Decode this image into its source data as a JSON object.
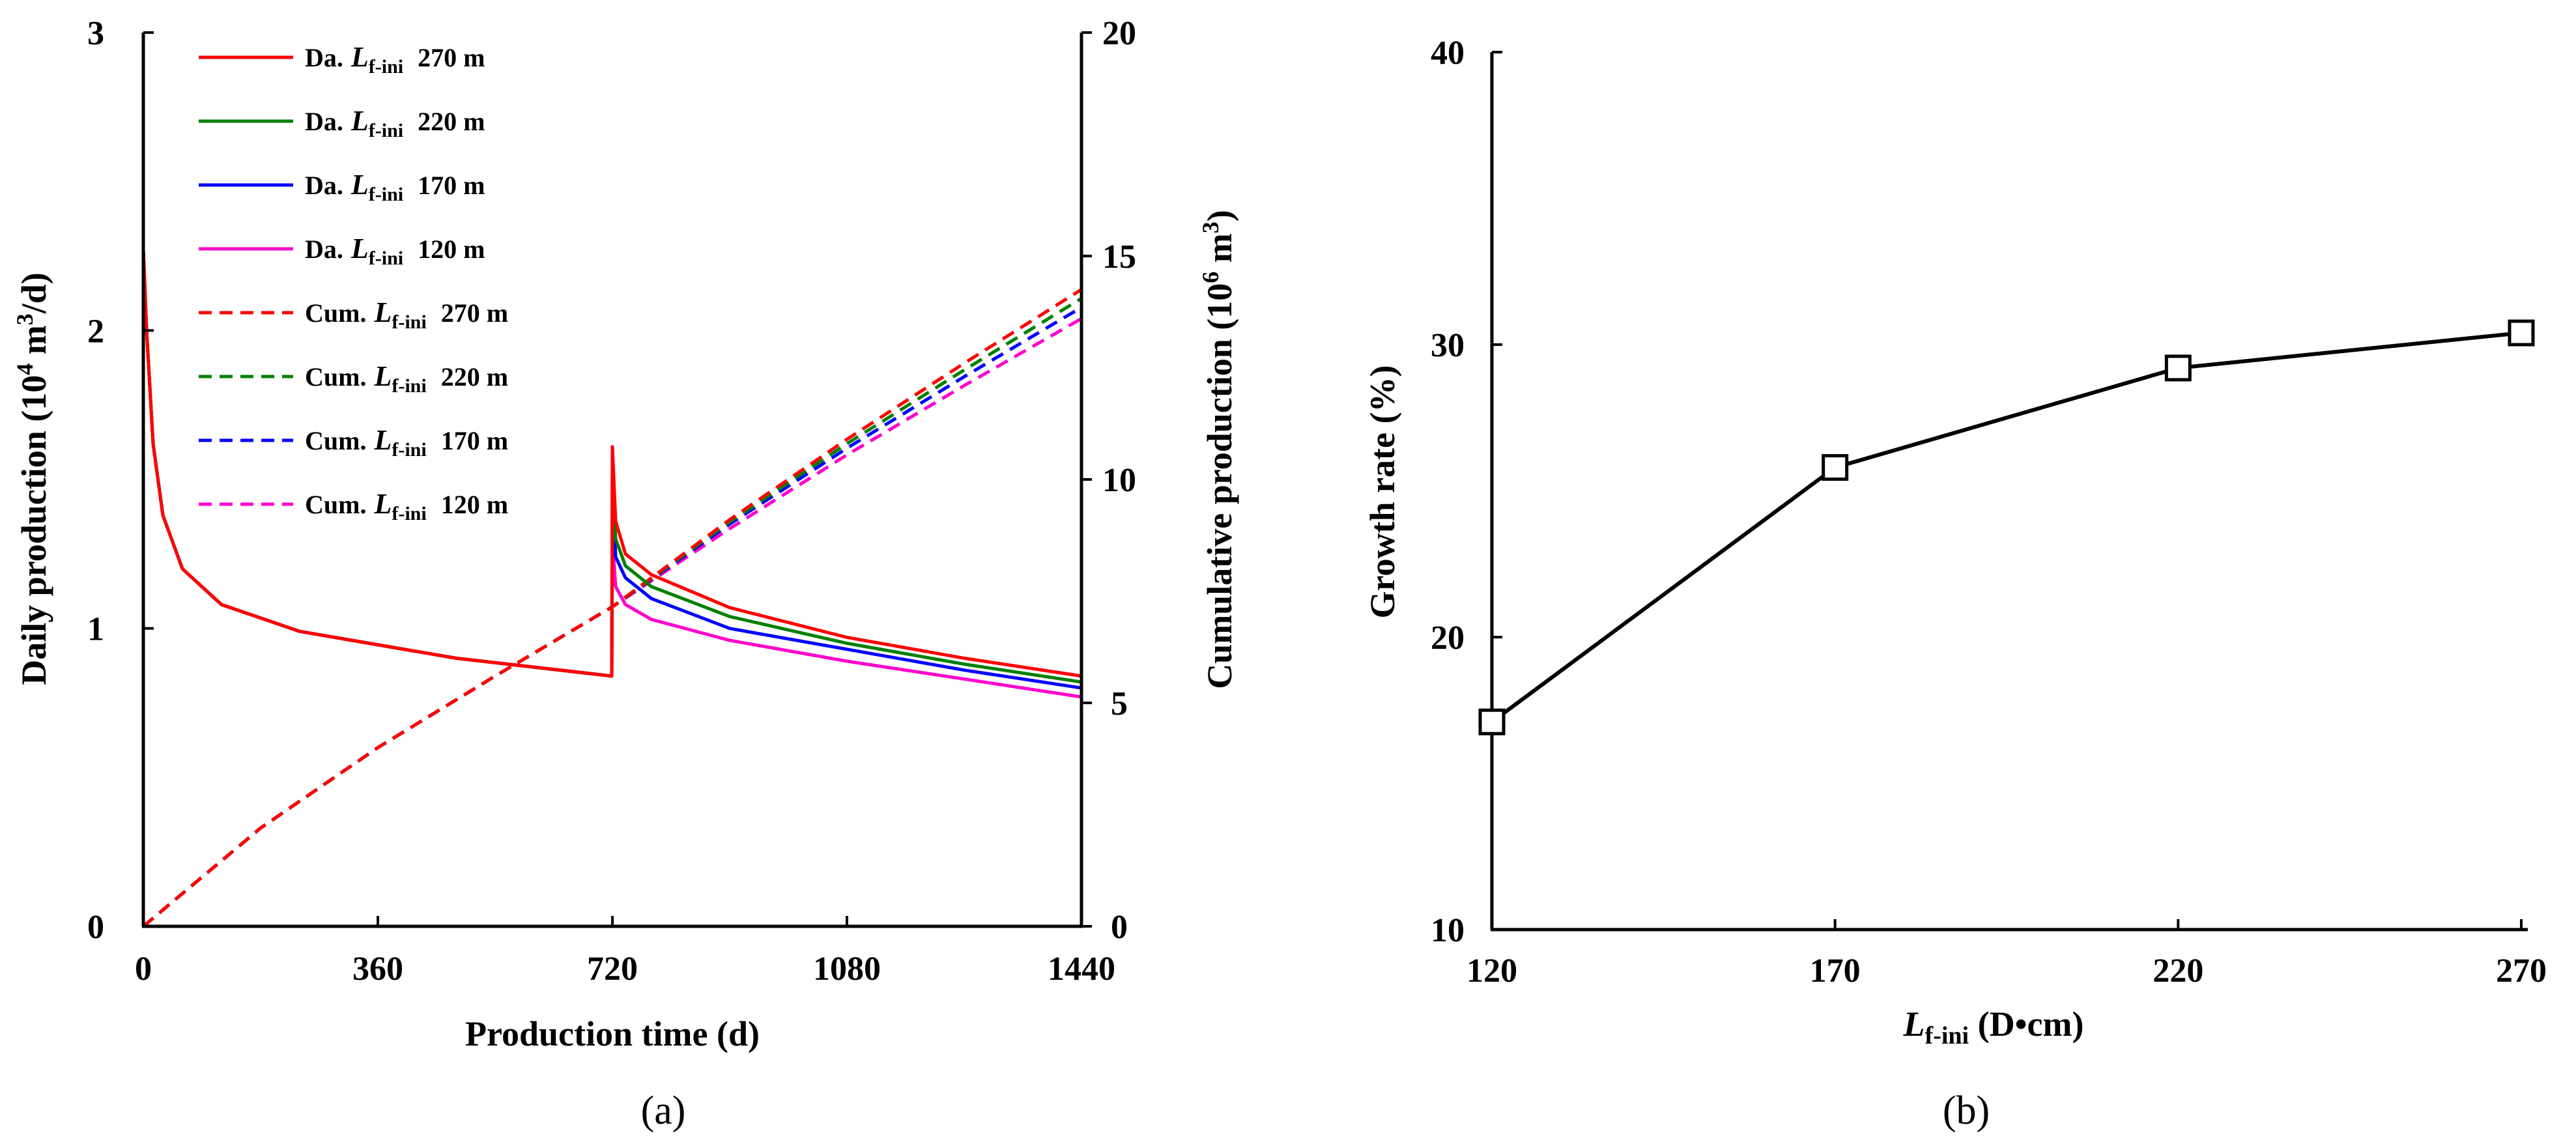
{
  "chart_data": [
    {
      "type": "line",
      "panel_label": "(a)",
      "xlabel": "Production time (d)",
      "ylabel_left": {
        "pre": "Daily  production  (10",
        "sup1": "4",
        "mid": " m",
        "sup2": "3",
        "post": "/d)"
      },
      "ylabel_right": {
        "pre": "Cumulative  production  (10",
        "sup1": "6",
        "mid": " m",
        "sup2": "3",
        "post": ")"
      },
      "x": {
        "min": 0,
        "max": 1440,
        "ticks": [
          0,
          360,
          720,
          1080,
          1440
        ],
        "tick_labels": [
          "0",
          "360",
          "720",
          "1080",
          "1440"
        ]
      },
      "y_left": {
        "min": 0,
        "max": 3,
        "ticks": [
          0,
          1,
          2,
          3
        ],
        "tick_labels": [
          "0",
          "1",
          "2",
          "3"
        ]
      },
      "y_right": {
        "min": 0,
        "max": 20,
        "ticks": [
          0,
          5,
          10,
          15,
          20
        ],
        "tick_labels": [
          "0",
          "5",
          "10",
          "15",
          "20"
        ]
      },
      "legend_position": "top-left",
      "series": [
        {
          "name": "Da. Lf-ini 270 m",
          "lead": "Da.",
          "sym": "L",
          "sub": "f-ini",
          "value": "270 m",
          "axis": "left",
          "style": "solid",
          "color": "#ff0000",
          "points": [
            [
              0,
              2.27
            ],
            [
              5,
              2.0
            ],
            [
              15,
              1.62
            ],
            [
              30,
              1.38
            ],
            [
              60,
              1.2
            ],
            [
              120,
              1.08
            ],
            [
              240,
              0.99
            ],
            [
              480,
              0.9
            ],
            [
              719,
              0.84
            ],
            [
              720,
              1.61
            ],
            [
              725,
              1.36
            ],
            [
              740,
              1.25
            ],
            [
              780,
              1.18
            ],
            [
              900,
              1.07
            ],
            [
              1080,
              0.97
            ],
            [
              1260,
              0.9
            ],
            [
              1440,
              0.84
            ]
          ]
        },
        {
          "name": "Da. Lf-ini 220 m",
          "lead": "Da.",
          "sym": "L",
          "sub": "f-ini",
          "value": "220 m",
          "axis": "left",
          "style": "solid",
          "color": "#008000",
          "points": [
            [
              0,
              2.27
            ],
            [
              5,
              2.0
            ],
            [
              15,
              1.62
            ],
            [
              30,
              1.38
            ],
            [
              60,
              1.2
            ],
            [
              120,
              1.08
            ],
            [
              240,
              0.99
            ],
            [
              480,
              0.9
            ],
            [
              719,
              0.84
            ],
            [
              720,
              1.53
            ],
            [
              725,
              1.3
            ],
            [
              740,
              1.21
            ],
            [
              780,
              1.14
            ],
            [
              900,
              1.04
            ],
            [
              1080,
              0.95
            ],
            [
              1260,
              0.88
            ],
            [
              1440,
              0.82
            ]
          ]
        },
        {
          "name": "Da. Lf-ini 170 m",
          "lead": "Da.",
          "sym": "L",
          "sub": "f-ini",
          "value": "170 m",
          "axis": "left",
          "style": "solid",
          "color": "#0000ff",
          "points": [
            [
              0,
              2.27
            ],
            [
              5,
              2.0
            ],
            [
              15,
              1.62
            ],
            [
              30,
              1.38
            ],
            [
              60,
              1.2
            ],
            [
              120,
              1.08
            ],
            [
              240,
              0.99
            ],
            [
              480,
              0.9
            ],
            [
              719,
              0.84
            ],
            [
              720,
              1.46
            ],
            [
              725,
              1.24
            ],
            [
              740,
              1.17
            ],
            [
              780,
              1.1
            ],
            [
              900,
              1.0
            ],
            [
              1080,
              0.93
            ],
            [
              1260,
              0.86
            ],
            [
              1440,
              0.8
            ]
          ]
        },
        {
          "name": "Da. Lf-ini 120 m",
          "lead": "Da.",
          "sym": "L",
          "sub": "f-ini",
          "value": "120 m",
          "axis": "left",
          "style": "solid",
          "color": "#ff00cc",
          "points": [
            [
              0,
              2.27
            ],
            [
              5,
              2.0
            ],
            [
              15,
              1.62
            ],
            [
              30,
              1.38
            ],
            [
              60,
              1.2
            ],
            [
              120,
              1.08
            ],
            [
              240,
              0.99
            ],
            [
              480,
              0.9
            ],
            [
              719,
              0.84
            ],
            [
              720,
              1.3
            ],
            [
              725,
              1.14
            ],
            [
              740,
              1.08
            ],
            [
              780,
              1.03
            ],
            [
              900,
              0.96
            ],
            [
              1080,
              0.89
            ],
            [
              1260,
              0.83
            ],
            [
              1440,
              0.77
            ]
          ]
        },
        {
          "name": "Cum. Lf-ini 270 m",
          "lead": "Cum.",
          "sym": "L",
          "sub": "f-ini",
          "value": "270 m",
          "axis": "right",
          "style": "dashed",
          "color": "#ff0000",
          "points": [
            [
              0,
              0
            ],
            [
              180,
              2.2
            ],
            [
              360,
              4.0
            ],
            [
              540,
              5.6
            ],
            [
              720,
              7.15
            ],
            [
              900,
              9.1
            ],
            [
              1080,
              10.9
            ],
            [
              1260,
              12.6
            ],
            [
              1440,
              14.25
            ]
          ]
        },
        {
          "name": "Cum. Lf-ini 220 m",
          "lead": "Cum.",
          "sym": "L",
          "sub": "f-ini",
          "value": "220 m",
          "axis": "right",
          "style": "dashed",
          "color": "#008000",
          "points": [
            [
              0,
              0
            ],
            [
              180,
              2.2
            ],
            [
              360,
              4.0
            ],
            [
              540,
              5.6
            ],
            [
              720,
              7.15
            ],
            [
              900,
              9.05
            ],
            [
              1080,
              10.8
            ],
            [
              1260,
              12.45
            ],
            [
              1440,
              14.05
            ]
          ]
        },
        {
          "name": "Cum. Lf-ini 170 m",
          "lead": "Cum.",
          "sym": "L",
          "sub": "f-ini",
          "value": "170 m",
          "axis": "right",
          "style": "dashed",
          "color": "#0000ff",
          "points": [
            [
              0,
              0
            ],
            [
              180,
              2.2
            ],
            [
              360,
              4.0
            ],
            [
              540,
              5.6
            ],
            [
              720,
              7.15
            ],
            [
              900,
              9.0
            ],
            [
              1080,
              10.7
            ],
            [
              1260,
              12.3
            ],
            [
              1440,
              13.85
            ]
          ]
        },
        {
          "name": "Cum. Lf-ini 120 m",
          "lead": "Cum.",
          "sym": "L",
          "sub": "f-ini",
          "value": "120 m",
          "axis": "right",
          "style": "dashed",
          "color": "#ff00cc",
          "points": [
            [
              0,
              0
            ],
            [
              180,
              2.2
            ],
            [
              360,
              4.0
            ],
            [
              540,
              5.6
            ],
            [
              720,
              7.15
            ],
            [
              900,
              8.9
            ],
            [
              1080,
              10.55
            ],
            [
              1260,
              12.1
            ],
            [
              1440,
              13.6
            ]
          ]
        }
      ]
    },
    {
      "type": "line",
      "panel_label": "(b)",
      "xlabel": {
        "sym": "L",
        "sub": "f-ini",
        "post": " (D•cm)"
      },
      "ylabel": "Growth rate (%)",
      "categories": [
        "120",
        "170",
        "220",
        "270"
      ],
      "values": [
        17.1,
        25.8,
        29.2,
        30.4
      ],
      "y": {
        "min": 10,
        "max": 40,
        "ticks": [
          10,
          20,
          30,
          40
        ],
        "tick_labels": [
          "10",
          "20",
          "30",
          "40"
        ]
      },
      "marker": "open-square",
      "color": "#000000"
    }
  ]
}
